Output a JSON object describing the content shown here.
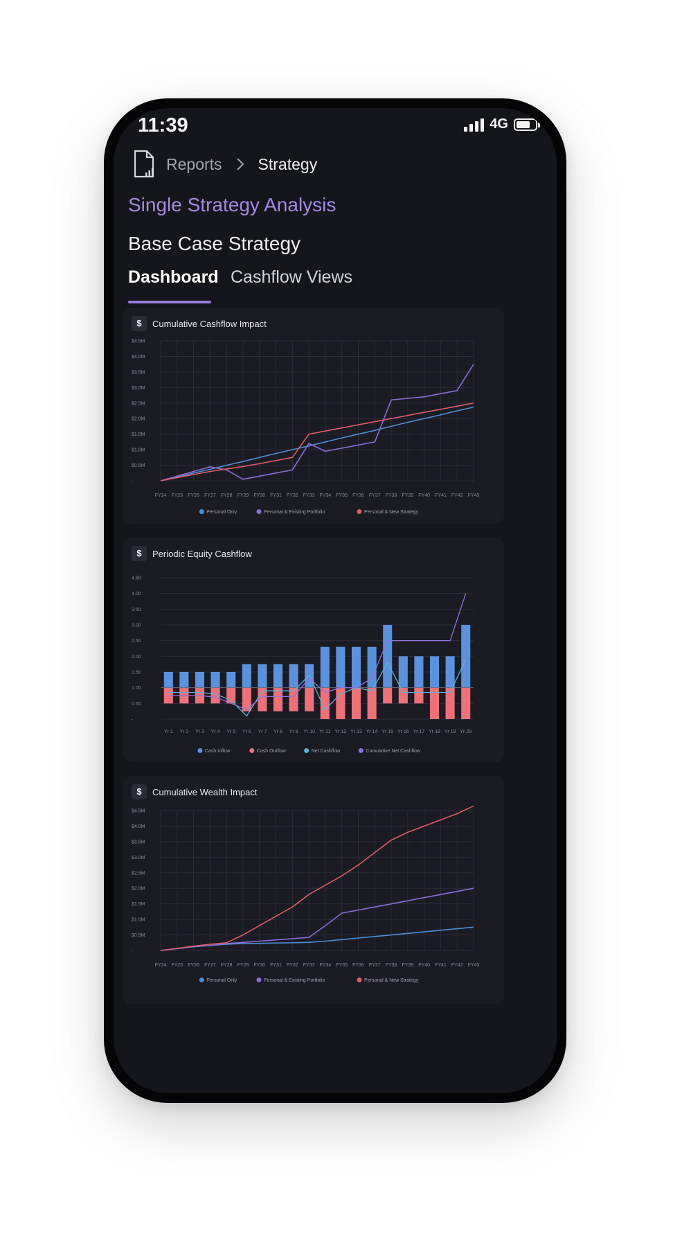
{
  "status": {
    "time": "11:39",
    "network": "4G"
  },
  "breadcrumb": {
    "parent": "Reports",
    "current": "Strategy"
  },
  "page": {
    "title": "Single Strategy Analysis",
    "subtitle": "Base Case Strategy"
  },
  "tabs": [
    {
      "label": "Dashboard",
      "active": true
    },
    {
      "label": "Cashflow Views",
      "active": false
    }
  ],
  "colors": {
    "accent": "#9b7be0",
    "personal_only": "#4a8fd6",
    "existing_portfolio": "#8a6ed8",
    "new_strategy": "#e05a67",
    "cash_inflow": "#5a92de",
    "cash_outflow": "#f07078",
    "net_cashflow": "#5bb5d8",
    "cumulative_net": "#8e74e0"
  },
  "cards": [
    {
      "title": "Cumulative Cashflow Impact"
    },
    {
      "title": "Periodic Equity Cashflow"
    },
    {
      "title": "Cumulative Wealth Impact"
    }
  ],
  "chart_data": [
    {
      "type": "line",
      "title": "Cumulative Cashflow Impact",
      "y_ticks": [
        "$4.5M",
        "$4.0M",
        "$3.5M",
        "$3.0M",
        "$2.5M",
        "$2.0M",
        "$1.5M",
        "$1.0M",
        "$0.5M",
        "-"
      ],
      "ylim": [
        0,
        4.5
      ],
      "categories": [
        "FY24",
        "FY25",
        "FY26",
        "FY27",
        "FY28",
        "FY29",
        "FY30",
        "FY31",
        "FY32",
        "FY33",
        "FY34",
        "FY35",
        "FY36",
        "FY37",
        "FY38",
        "FY39",
        "FY40",
        "FY41",
        "FY42",
        "FY43"
      ],
      "series": [
        {
          "name": "Personal Only",
          "color": "#4a8fd6",
          "values": [
            0,
            0.12,
            0.25,
            0.37,
            0.5,
            0.62,
            0.75,
            0.88,
            1.0,
            1.12,
            1.25,
            1.38,
            1.5,
            1.62,
            1.75,
            1.88,
            2.0,
            2.12,
            2.25,
            2.37
          ]
        },
        {
          "name": "Personal & Existing Portfolio",
          "color": "#8a6ed8",
          "values": [
            0,
            0.15,
            0.3,
            0.45,
            0.35,
            0.05,
            0.15,
            0.25,
            0.35,
            1.2,
            0.95,
            1.05,
            1.15,
            1.25,
            2.6,
            2.65,
            2.7,
            2.8,
            2.9,
            3.75
          ]
        },
        {
          "name": "Personal & New Strategy",
          "color": "#e05a67",
          "values": [
            0,
            0.1,
            0.2,
            0.3,
            0.38,
            0.46,
            0.55,
            0.65,
            0.75,
            1.5,
            1.6,
            1.7,
            1.8,
            1.9,
            2.0,
            2.1,
            2.2,
            2.3,
            2.4,
            2.5
          ]
        }
      ]
    },
    {
      "type": "bar",
      "title": "Periodic Equity Cashflow",
      "y_ticks": [
        "4.50",
        "4.00",
        "3.50",
        "3.00",
        "2.50",
        "2.00",
        "1.50",
        "1.00",
        "0.50",
        "-"
      ],
      "ylim": [
        0,
        4.5
      ],
      "categories": [
        "Yr 1",
        "Yr 2",
        "Yr 3",
        "Yr 4",
        "Yr 5",
        "Yr 6",
        "Yr 7",
        "Yr 8",
        "Yr 9",
        "Yr 10",
        "Yr 11",
        "Yr 12",
        "Yr 13",
        "Yr 14",
        "Yr 15",
        "Yr 16",
        "Yr 17",
        "Yr 18",
        "Yr 19",
        "Yr 20"
      ],
      "series": [
        {
          "name": "Cash Inflow",
          "color": "#5a92de",
          "values": [
            0.5,
            0.5,
            0.5,
            0.5,
            0.5,
            0.75,
            0.75,
            0.75,
            0.75,
            0.75,
            1.3,
            1.3,
            1.3,
            1.3,
            2.0,
            1.0,
            1.0,
            1.0,
            1.0,
            2.0
          ]
        },
        {
          "name": "Cash Outflow",
          "color": "#f07078",
          "values": [
            -0.5,
            -0.5,
            -0.5,
            -0.5,
            -0.5,
            -0.75,
            -0.75,
            -0.75,
            -0.75,
            -0.75,
            -1.0,
            -1.0,
            -1.0,
            -1.0,
            -0.5,
            -0.5,
            -0.5,
            -1.0,
            -1.0,
            -1.0
          ]
        },
        {
          "name": "Net Cashflow",
          "color": "#5bb5d8",
          "values": [
            0.85,
            0.85,
            0.85,
            0.8,
            0.6,
            0.1,
            0.9,
            0.9,
            0.9,
            1.4,
            0.3,
            0.8,
            1.0,
            0.9,
            1.8,
            0.85,
            0.85,
            0.85,
            0.85,
            1.9
          ]
        },
        {
          "name": "Cumulative Net Cashflow",
          "color": "#8e74e0",
          "values": [
            0.75,
            0.75,
            0.75,
            0.7,
            0.5,
            0.3,
            0.72,
            0.72,
            0.72,
            1.3,
            0.85,
            1.0,
            1.0,
            1.3,
            2.5,
            2.5,
            2.5,
            2.5,
            2.5,
            4.0
          ]
        }
      ]
    },
    {
      "type": "line",
      "title": "Cumulative Wealth Impact",
      "y_ticks": [
        "$4.5M",
        "$4.0M",
        "$3.5M",
        "$3.0M",
        "$2.5M",
        "$2.0M",
        "$1.5M",
        "$1.0M",
        "$0.5M",
        "-"
      ],
      "ylim": [
        0,
        4.5
      ],
      "categories": [
        "FY24",
        "FY25",
        "FY26",
        "FY27",
        "FY28",
        "FY29",
        "FY30",
        "FY31",
        "FY32",
        "FY33",
        "FY34",
        "FY35",
        "FY36",
        "FY37",
        "FY38",
        "FY39",
        "FY40",
        "FY41",
        "FY42",
        "FY43"
      ],
      "series": [
        {
          "name": "Personal Only",
          "color": "#4a8fd6",
          "values": [
            0,
            0.06,
            0.12,
            0.16,
            0.2,
            0.22,
            0.23,
            0.24,
            0.25,
            0.26,
            0.3,
            0.35,
            0.4,
            0.45,
            0.5,
            0.55,
            0.6,
            0.65,
            0.7,
            0.75
          ]
        },
        {
          "name": "Personal & Existing Portfolio",
          "color": "#8a6ed8",
          "values": [
            0,
            0.06,
            0.12,
            0.16,
            0.22,
            0.26,
            0.3,
            0.34,
            0.38,
            0.42,
            0.8,
            1.2,
            1.3,
            1.4,
            1.5,
            1.6,
            1.7,
            1.8,
            1.9,
            2.0
          ]
        },
        {
          "name": "Personal & New Strategy",
          "color": "#e05a67",
          "values": [
            0,
            0.07,
            0.14,
            0.2,
            0.25,
            0.5,
            0.8,
            1.1,
            1.4,
            1.8,
            2.1,
            2.4,
            2.75,
            3.15,
            3.55,
            3.8,
            4.0,
            4.2,
            4.4,
            4.65
          ]
        }
      ]
    }
  ]
}
